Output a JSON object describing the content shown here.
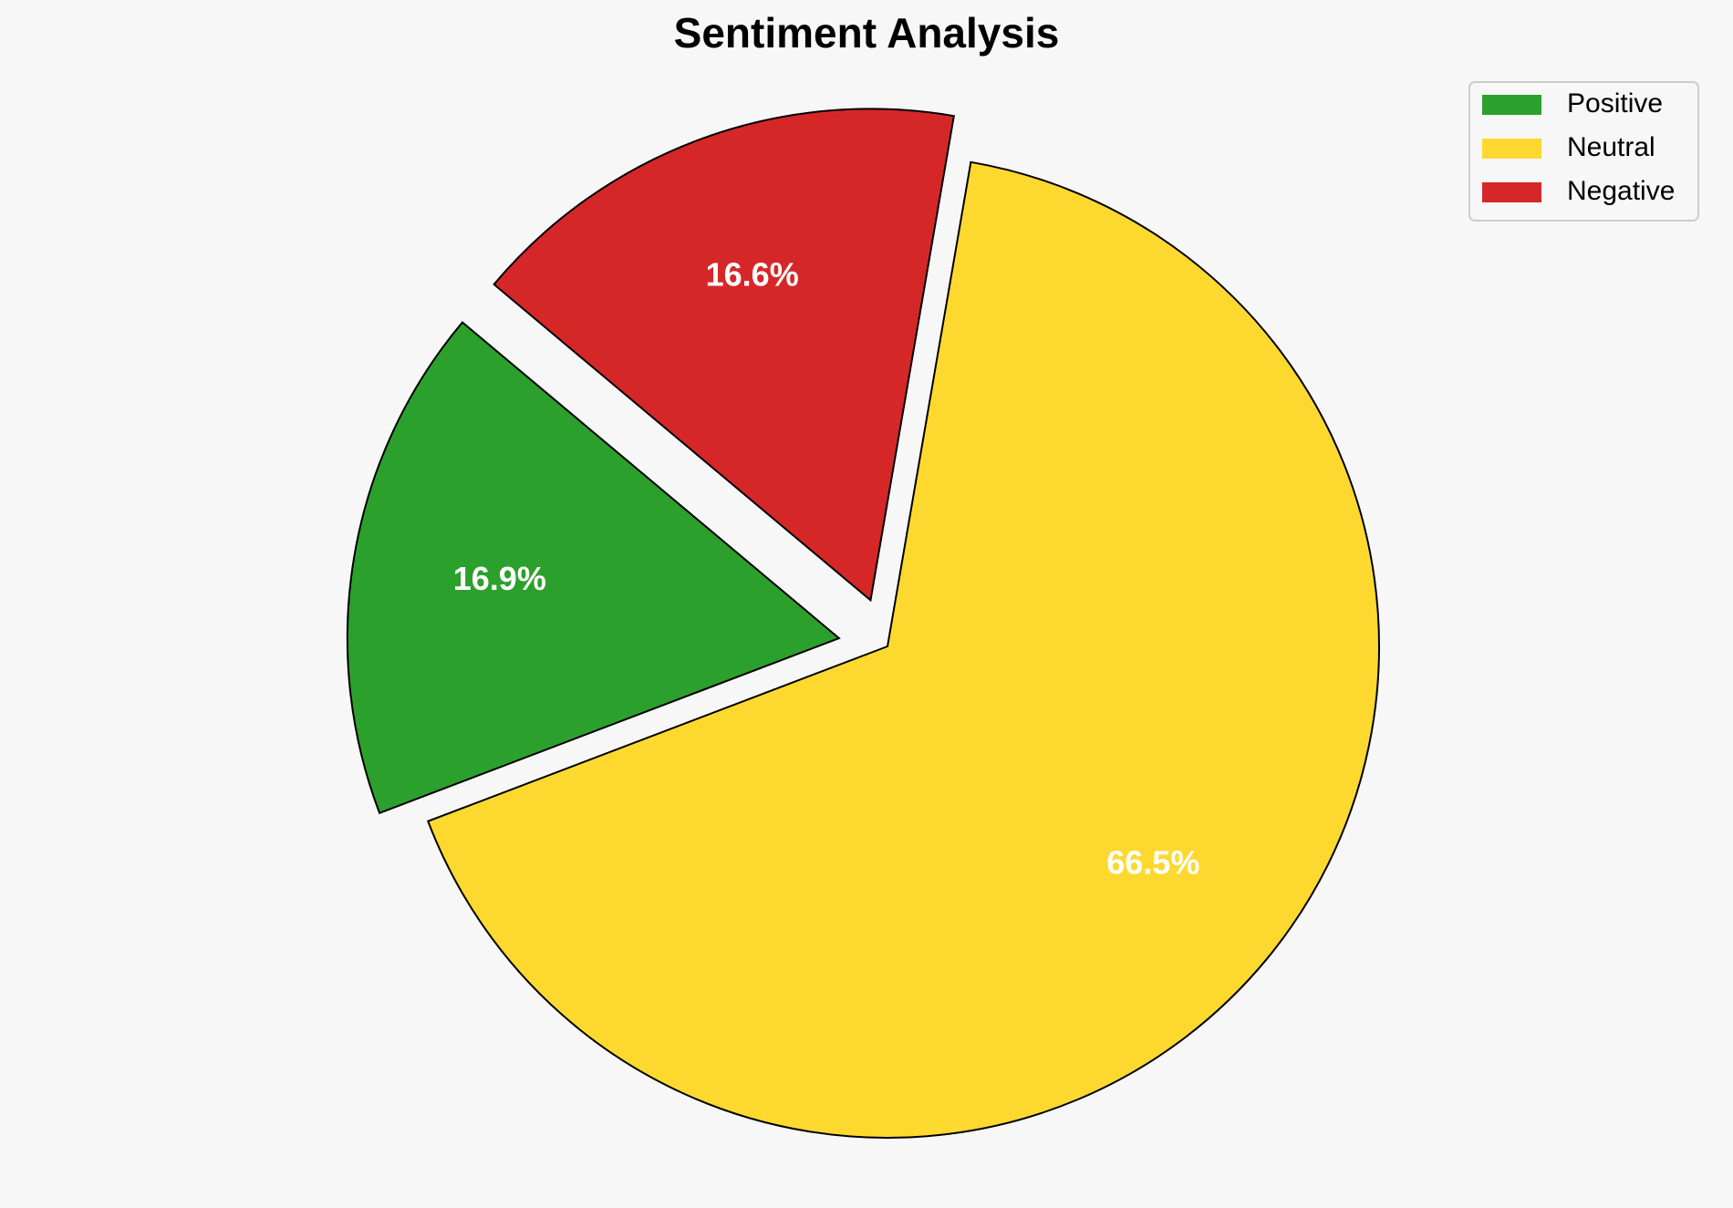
{
  "chart_data": {
    "type": "pie",
    "title": "Sentiment Analysis",
    "categories": [
      "Positive",
      "Neutral",
      "Negative"
    ],
    "values": [
      16.9,
      66.5,
      16.6
    ],
    "value_labels": [
      "16.9%",
      "66.5%",
      "16.6%"
    ],
    "colors": [
      "#2ca02c",
      "#fdd930",
      "#d62728"
    ],
    "explode": [
      0.1,
      0,
      0.1
    ],
    "startangle": 140,
    "legend": "upper right"
  }
}
